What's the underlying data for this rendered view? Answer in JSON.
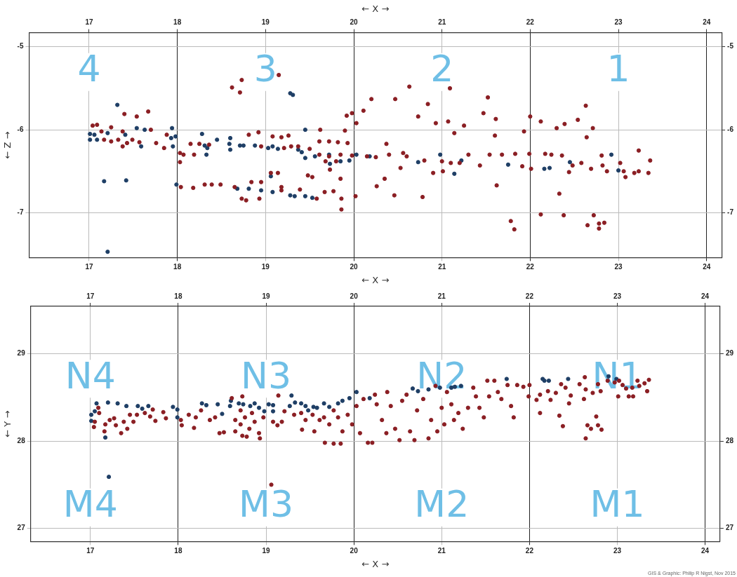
{
  "chart_data": [
    {
      "type": "scatter",
      "x2label": "← X →",
      "xlabel": "← X →",
      "ylabel": "← Z →",
      "marker": "circle",
      "grid": true,
      "legend": false,
      "xlim": [
        16.32,
        24.17
      ],
      "xticks": [
        17,
        18,
        19,
        20,
        21,
        22,
        23,
        24
      ],
      "x2lim": [
        16.32,
        24.17
      ],
      "x2ticks": [
        17,
        18,
        19,
        20,
        21,
        22,
        23,
        24
      ],
      "ylim": [
        -7.54,
        -4.83
      ],
      "yticks": [
        -7,
        -6,
        -5
      ],
      "y2lim": [
        -7.54,
        -4.83
      ],
      "y2ticks": [
        -7,
        -6,
        -5
      ],
      "annotations": [
        "4",
        "3",
        "2",
        "1"
      ],
      "series": [
        {
          "color": "#8b1f24",
          "x": [
            20.63,
            21.09,
            20.47,
            20.2,
            20.84,
            21.52,
            20.73,
            21.47,
            21.61,
            20.93,
            21.07,
            21.25,
            21.14,
            21.6,
            22.0,
            22.12,
            21.93,
            22.39,
            22.54,
            22.63,
            22.71,
            22.64,
            22.3,
            23.23,
            23.36,
            21.68,
            21.83,
            21.99,
            22.17,
            22.24,
            22.36,
            22.48,
            22.58,
            22.69,
            22.81,
            22.82,
            22.87,
            23.02,
            23.06,
            23.18,
            23.23,
            23.34,
            23.08,
            22.44,
            22.01,
            21.91,
            21.43,
            21.54,
            21.3,
            20.53,
            20.56,
            20.37,
            20.35,
            21.62,
            22.33,
            20.78,
            20.46,
            20.26,
            22.12,
            22.38,
            22.72,
            21.78,
            21.82,
            22.65,
            22.78,
            22.78,
            22.84,
            21.01,
            20.9,
            19.15,
            18.73,
            18.62,
            18.71,
            17.67,
            17.4,
            17.54,
            17.04,
            17.09,
            17.25,
            17.14,
            17.38,
            17.17,
            17.25,
            17.33,
            17.38,
            17.43,
            17.49,
            17.57,
            17.7,
            17.76,
            17.85,
            17.88,
            18.03,
            18.07,
            18.03,
            18.19,
            18.15,
            18.25,
            18.36,
            18.81,
            18.92,
            18.95,
            19.08,
            19.18,
            19.26,
            19.62,
            19.92,
            19.98,
            20.03,
            20.11,
            19.9,
            19.21,
            19.29,
            19.37,
            19.5,
            19.61,
            19.72,
            19.85,
            19.98,
            19.61,
            19.72,
            19.82,
            19.93,
            19.68,
            19.8,
            19.73,
            19.06,
            19.14,
            19.48,
            19.53,
            19.85,
            18.04,
            18.18,
            18.31,
            18.39,
            18.49,
            18.65,
            18.84,
            18.95,
            18.73,
            18.78,
            18.93,
            19.18,
            19.18,
            19.39,
            19.58,
            19.67,
            19.77,
            19.86,
            19.86,
            20.02,
            20.15,
            20.25,
            20.4,
            20.6,
            20.8,
            21.0,
            21.1,
            21.2
          ],
          "values": [
            -5.48,
            -5.5,
            -5.63,
            -5.63,
            -5.69,
            -5.61,
            -5.84,
            -5.8,
            -5.87,
            -5.92,
            -5.9,
            -5.95,
            -6.04,
            -6.07,
            -5.84,
            -5.9,
            -6.02,
            -5.93,
            -5.88,
            -5.71,
            -5.98,
            -6.09,
            -5.98,
            -6.25,
            -6.37,
            -6.3,
            -6.29,
            -6.29,
            -6.29,
            -6.3,
            -6.31,
            -6.43,
            -6.4,
            -6.47,
            -6.31,
            -6.43,
            -6.5,
            -6.4,
            -6.5,
            -6.52,
            -6.5,
            -6.52,
            -6.57,
            -6.51,
            -6.47,
            -6.44,
            -6.43,
            -6.3,
            -6.3,
            -6.46,
            -6.28,
            -6.17,
            -6.59,
            -6.67,
            -6.77,
            -6.81,
            -6.79,
            -6.68,
            -7.02,
            -7.03,
            -7.03,
            -7.1,
            -7.2,
            -7.15,
            -7.13,
            -7.19,
            -7.12,
            -6.5,
            -6.52,
            -5.34,
            -5.4,
            -5.49,
            -5.55,
            -5.78,
            -5.81,
            -5.84,
            -5.95,
            -5.94,
            -5.97,
            -6.02,
            -6.02,
            -6.12,
            -6.14,
            -6.12,
            -6.2,
            -6.16,
            -6.12,
            -6.15,
            -6.0,
            -6.16,
            -6.22,
            -6.06,
            -6.28,
            -6.3,
            -6.39,
            -6.3,
            -6.17,
            -6.17,
            -6.18,
            -6.06,
            -6.03,
            -6.2,
            -6.08,
            -6.09,
            -6.07,
            -6.0,
            -5.83,
            -5.8,
            -5.92,
            -5.77,
            -6.01,
            -6.22,
            -6.2,
            -6.2,
            -6.23,
            -6.3,
            -6.32,
            -6.3,
            -6.31,
            -6.14,
            -6.14,
            -6.15,
            -6.16,
            -6.38,
            -6.38,
            -6.48,
            -6.52,
            -6.52,
            -6.55,
            -6.57,
            -6.59,
            -6.69,
            -6.7,
            -6.66,
            -6.66,
            -6.66,
            -6.69,
            -6.63,
            -6.63,
            -6.83,
            -6.85,
            -6.83,
            -6.73,
            -6.69,
            -6.72,
            -6.83,
            -6.75,
            -6.74,
            -6.83,
            -6.96,
            -6.8,
            -6.32,
            -6.33,
            -6.3,
            -6.32,
            -6.37,
            -6.38,
            -6.4,
            -6.4
          ]
        },
        {
          "color": "#1f3f66",
          "x": [
            17.32,
            17.01,
            17.06,
            17.01,
            17.09,
            17.21,
            17.41,
            17.54,
            17.59,
            17.63,
            17.94,
            17.98,
            17.93,
            17.95,
            17.17,
            17.42,
            17.21,
            17.99,
            18.28,
            18.31,
            18.34,
            18.33,
            18.45,
            18.6,
            18.59,
            18.6,
            18.71,
            18.75,
            18.88,
            19.03,
            19.08,
            19.14,
            19.28,
            19.31,
            19.45,
            19.37,
            19.41,
            19.45,
            19.56,
            19.72,
            19.73,
            19.85,
            19.95,
            20.03,
            19.06,
            18.68,
            18.81,
            18.95,
            19.08,
            19.28,
            19.45,
            19.53,
            19.33,
            20.98,
            20.73,
            21.14,
            21.22,
            21.75,
            22.16,
            22.22,
            22.45,
            22.92,
            23.0,
            20.18
          ],
          "values": [
            -5.7,
            -6.05,
            -6.06,
            -6.12,
            -6.12,
            -6.04,
            -6.06,
            -5.98,
            -6.2,
            -6.0,
            -5.98,
            -6.08,
            -6.1,
            -6.2,
            -6.62,
            -6.61,
            -7.47,
            -6.66,
            -6.05,
            -6.19,
            -6.22,
            -6.3,
            -6.12,
            -6.1,
            -6.17,
            -6.24,
            -6.19,
            -6.19,
            -6.19,
            -6.22,
            -6.2,
            -6.23,
            -5.56,
            -5.58,
            -6.0,
            -6.24,
            -6.27,
            -6.34,
            -6.32,
            -6.3,
            -6.41,
            -6.38,
            -6.37,
            -6.3,
            -6.56,
            -6.71,
            -6.71,
            -6.73,
            -6.75,
            -6.79,
            -6.8,
            -6.82,
            -6.8,
            -6.3,
            -6.39,
            -6.53,
            -6.37,
            -6.42,
            -6.47,
            -6.46,
            -6.39,
            -6.3,
            -6.49,
            -6.32
          ]
        }
      ]
    },
    {
      "type": "scatter",
      "xlabel": "← X →",
      "ylabel": "← Y →",
      "marker": "circle",
      "grid": true,
      "legend": false,
      "xlim": [
        16.32,
        24.17
      ],
      "xticks": [
        17,
        18,
        19,
        20,
        21,
        22,
        23,
        24
      ],
      "x2lim": [
        16.32,
        24.17
      ],
      "x2ticks": [
        17,
        18,
        19,
        20,
        21,
        22,
        23,
        24
      ],
      "ylim": [
        26.85,
        29.54
      ],
      "yticks": [
        27,
        28,
        29
      ],
      "y2lim": [
        26.85,
        29.54
      ],
      "y2ticks": [
        27,
        28,
        29
      ],
      "annotations": [
        "N4",
        "N3",
        "N2",
        "N1",
        "M4",
        "M3",
        "M2",
        "M1",
        "GIS & Graphic: Philip R Nigst, Nov 2015"
      ],
      "series": [
        {
          "color": "#8b1f24",
          "x": [
            17.09,
            17.1,
            17.04,
            17.05,
            17.16,
            17.22,
            17.17,
            17.27,
            17.29,
            17.35,
            17.38,
            17.42,
            17.45,
            17.49,
            17.53,
            17.62,
            17.68,
            17.71,
            17.74,
            17.83,
            17.86,
            18.03,
            18.04,
            18.12,
            18.18,
            18.2,
            18.26,
            18.36,
            18.42,
            18.47,
            18.52,
            18.61,
            18.73,
            19.14,
            19.06,
            18.65,
            18.71,
            18.76,
            18.81,
            18.87,
            18.92,
            18.65,
            18.73,
            18.78,
            18.93,
            18.97,
            18.71,
            18.84,
            19.08,
            19.13,
            19.18,
            19.21,
            19.32,
            19.4,
            19.45,
            19.53,
            19.61,
            19.66,
            19.72,
            19.77,
            19.82,
            19.87,
            19.93,
            19.98,
            20.03,
            20.07,
            19.41,
            19.55,
            19.67,
            19.77,
            19.85,
            20.11,
            20.16,
            20.21,
            20.24,
            20.26,
            20.32,
            20.37,
            20.38,
            20.42,
            20.47,
            20.52,
            20.55,
            20.6,
            20.64,
            20.69,
            20.72,
            20.79,
            20.85,
            20.88,
            20.93,
            20.95,
            21.0,
            21.03,
            21.06,
            21.11,
            21.14,
            21.19,
            21.24,
            21.3,
            21.36,
            21.39,
            21.43,
            21.48,
            21.52,
            21.54,
            21.6,
            21.64,
            21.68,
            21.75,
            21.79,
            21.82,
            21.86,
            21.93,
            22.0,
            21.99,
            22.08,
            22.12,
            22.12,
            22.21,
            22.24,
            22.3,
            22.34,
            22.36,
            22.38,
            22.41,
            22.45,
            22.47,
            22.57,
            22.63,
            22.64,
            22.62,
            22.64,
            22.66,
            22.7,
            22.76,
            22.78,
            22.82,
            22.72,
            22.78,
            22.81,
            22.89,
            22.97,
            23.01,
            23.02,
            23.06,
            23.1,
            23.13,
            23.18,
            23.17,
            23.23,
            23.25,
            23.31,
            23.34,
            23.36
          ],
          "values": [
            28.38,
            28.32,
            28.16,
            28.22,
            28.11,
            28.24,
            28.19,
            28.26,
            28.18,
            28.09,
            28.22,
            28.14,
            28.3,
            28.22,
            28.3,
            28.32,
            28.28,
            28.36,
            28.23,
            28.33,
            28.26,
            28.24,
            28.18,
            28.3,
            28.15,
            28.27,
            28.35,
            28.24,
            28.27,
            28.09,
            28.1,
            28.49,
            28.51,
            28.52,
            27.5,
            28.24,
            28.19,
            28.27,
            28.14,
            28.22,
            28.09,
            28.11,
            28.06,
            28.05,
            28.03,
            28.27,
            28.35,
            28.32,
            28.22,
            28.18,
            28.22,
            28.34,
            28.3,
            28.32,
            28.24,
            28.3,
            28.24,
            28.27,
            28.19,
            28.35,
            28.27,
            28.11,
            28.3,
            28.19,
            28.4,
            28.09,
            28.13,
            28.11,
            27.98,
            27.97,
            27.97,
            28.48,
            27.98,
            27.98,
            28.53,
            28.42,
            28.24,
            28.09,
            28.56,
            28.4,
            28.14,
            28.01,
            28.46,
            28.53,
            28.11,
            28.01,
            28.35,
            28.48,
            28.03,
            28.24,
            28.63,
            28.11,
            28.38,
            28.19,
            28.56,
            28.42,
            28.24,
            28.32,
            28.14,
            28.38,
            28.61,
            28.51,
            28.38,
            28.27,
            28.69,
            28.51,
            28.69,
            28.56,
            28.48,
            28.64,
            28.4,
            28.27,
            28.64,
            28.62,
            28.64,
            28.51,
            28.47,
            28.32,
            28.53,
            28.57,
            28.47,
            28.55,
            28.29,
            28.65,
            28.17,
            28.61,
            28.43,
            28.52,
            28.65,
            28.73,
            28.59,
            28.48,
            28.03,
            28.18,
            28.14,
            28.28,
            28.18,
            28.13,
            28.55,
            28.65,
            28.57,
            28.69,
            28.67,
            28.51,
            28.69,
            28.64,
            28.6,
            28.51,
            28.51,
            28.61,
            28.69,
            28.63,
            28.66,
            28.57,
            28.7
          ]
        },
        {
          "color": "#1f3f66",
          "x": [
            17.07,
            17.2,
            17.31,
            17.41,
            17.01,
            17.01,
            17.05,
            17.17,
            17.21,
            17.54,
            17.59,
            17.66,
            17.94,
            17.99,
            17.99,
            18.27,
            18.32,
            18.45,
            18.5,
            18.6,
            18.59,
            18.69,
            18.74,
            18.82,
            18.87,
            18.92,
            18.98,
            19.03,
            19.08,
            19.08,
            19.29,
            19.27,
            19.33,
            19.4,
            19.45,
            19.48,
            19.54,
            19.58,
            19.66,
            19.72,
            19.82,
            19.87,
            19.95,
            20.03,
            20.67,
            20.73,
            20.85,
            20.98,
            21.11,
            21.15,
            21.22,
            21.74,
            22.15,
            22.17,
            22.22,
            22.44,
            22.9,
            22.99,
            20.18
          ],
          "values": [
            28.43,
            28.44,
            28.43,
            28.4,
            28.3,
            28.23,
            28.34,
            28.04,
            27.59,
            28.4,
            28.37,
            28.4,
            28.39,
            28.36,
            28.27,
            28.43,
            28.41,
            28.42,
            28.31,
            28.46,
            28.4,
            28.43,
            28.42,
            28.4,
            28.43,
            28.38,
            28.34,
            28.42,
            28.41,
            28.34,
            28.52,
            28.4,
            28.44,
            28.43,
            28.4,
            28.35,
            28.39,
            28.38,
            28.43,
            28.39,
            28.43,
            28.46,
            28.49,
            28.56,
            28.6,
            28.57,
            28.59,
            28.61,
            28.61,
            28.62,
            28.63,
            28.71,
            28.71,
            28.69,
            28.69,
            28.71,
            28.74,
            28.71,
            28.49
          ]
        }
      ]
    }
  ]
}
